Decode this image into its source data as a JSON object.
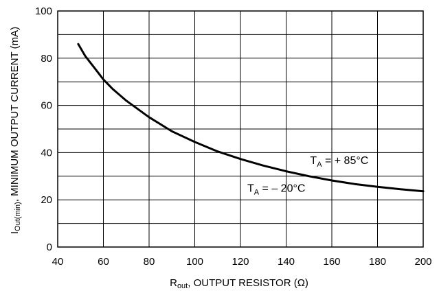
{
  "chart_data": {
    "type": "line",
    "title": "",
    "xlabel": {
      "main": "R",
      "sub": "out",
      "rest": ", OUTPUT RESISTOR (Ω)"
    },
    "ylabel": {
      "main": "I",
      "sub": "Out(min)",
      "rest": ", MINIMUM OUTPUT CURRENT (mA)"
    },
    "xlim": [
      40,
      200
    ],
    "ylim": [
      0,
      100
    ],
    "xticks": [
      40,
      60,
      80,
      100,
      120,
      140,
      160,
      180,
      200
    ],
    "yticks": [
      0,
      20,
      40,
      60,
      80,
      100
    ],
    "grid": true,
    "series": [
      {
        "x": [
          49,
          52,
          56,
          60,
          64,
          70,
          80,
          90,
          100,
          110,
          120,
          130,
          140,
          150,
          160,
          170,
          180,
          190,
          200
        ],
        "y": [
          86,
          81,
          76,
          71,
          67,
          62,
          55,
          49,
          44.5,
          40.5,
          37.3,
          34.5,
          32.1,
          30,
          28.2,
          26.7,
          25.5,
          24.5,
          23.6
        ]
      }
    ],
    "annotations": [
      {
        "main": "T",
        "sub": "A",
        "rest": " = + 85°C",
        "x": 150.5,
        "y": 35.2
      },
      {
        "main": "T",
        "sub": "A",
        "rest": " = – 20°C",
        "x": 123,
        "y": 23.4
      }
    ]
  }
}
